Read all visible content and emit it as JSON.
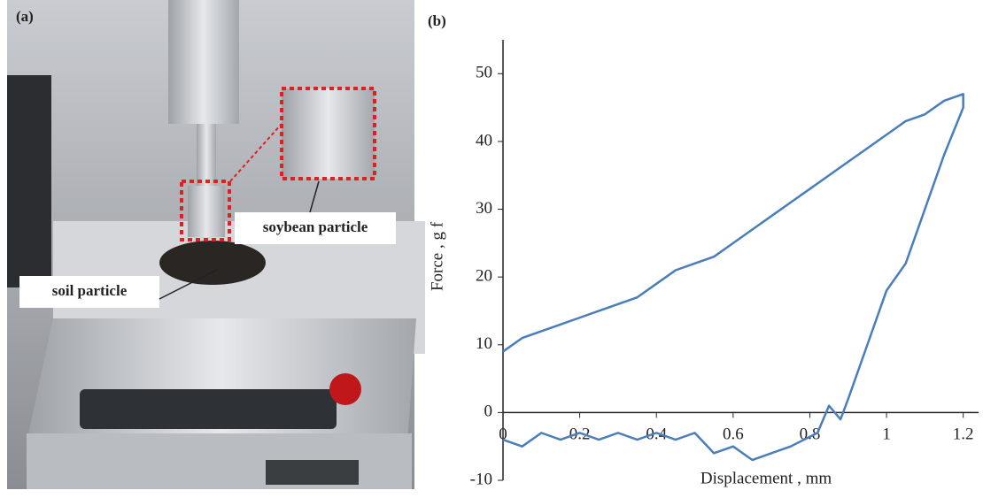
{
  "panel_a": {
    "label": "(a)",
    "annotations": [
      "soybean particle",
      "soil particle"
    ]
  },
  "chart_data": {
    "type": "line",
    "panel_label": "(b)",
    "x_label": "Displacement , mm",
    "y_label": "Force , g f",
    "xlim": [
      0,
      1.24
    ],
    "ylim": [
      -10,
      55
    ],
    "xticks": [
      0,
      0.2,
      0.4,
      0.6,
      0.8,
      1,
      1.2
    ],
    "yticks": [
      -10,
      0,
      10,
      20,
      30,
      40,
      50
    ],
    "series": [
      {
        "color": "#4a7ebb",
        "x": [
          0,
          0.05,
          0.1,
          0.15,
          0.2,
          0.25,
          0.3,
          0.35,
          0.4,
          0.45,
          0.5,
          0.55,
          0.6,
          0.65,
          0.7,
          0.75,
          0.8,
          0.85,
          0.9,
          0.95,
          1.0,
          1.05,
          1.1,
          1.15,
          1.2,
          1.2,
          1.15,
          1.1,
          1.05,
          1.0,
          0.95,
          0.9,
          0.88,
          0.85,
          0.82,
          0.75,
          0.7,
          0.65,
          0.6,
          0.55,
          0.5,
          0.45,
          0.4,
          0.35,
          0.3,
          0.25,
          0.2,
          0.15,
          0.1,
          0.05,
          0
        ],
        "values": [
          9,
          11,
          12,
          13,
          14,
          15,
          16,
          17,
          19,
          21,
          22,
          23,
          25,
          27,
          29,
          31,
          33,
          35,
          37,
          39,
          41,
          43,
          44,
          46,
          47,
          45,
          38,
          30,
          22,
          18,
          10,
          2,
          -1,
          1,
          -3,
          -5,
          -6,
          -7,
          -5,
          -6,
          -3,
          -4,
          -3,
          -4,
          -3,
          -4,
          -3,
          -4,
          -3,
          -5,
          -4
        ]
      }
    ]
  }
}
